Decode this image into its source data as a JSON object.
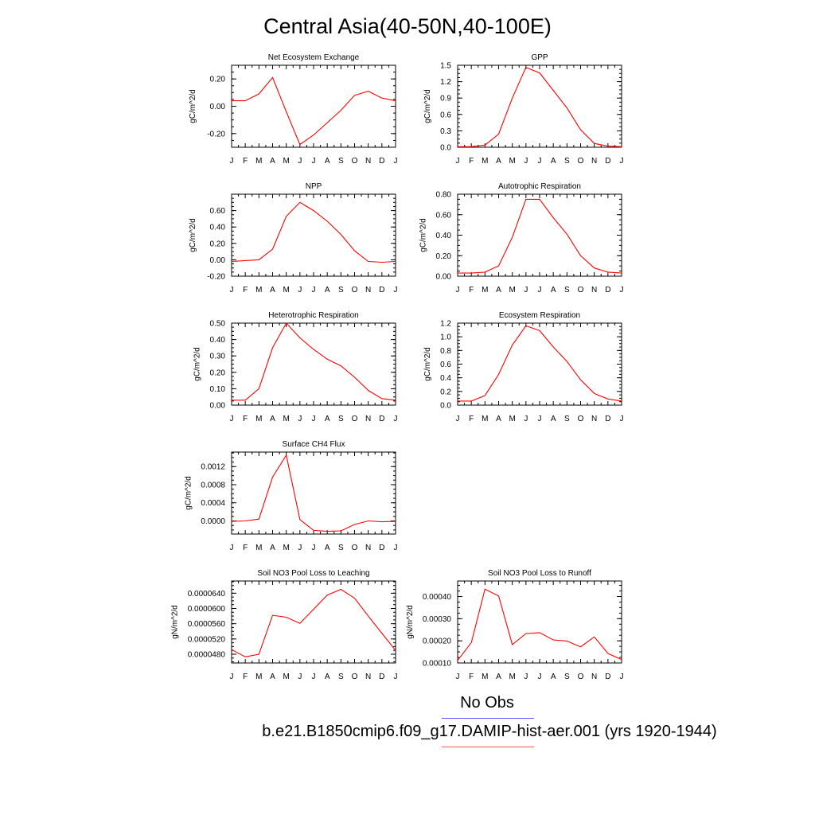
{
  "figure": {
    "title": "Central Asia(40-50N,40-100E)",
    "legend": {
      "obs_label": "No Obs",
      "model_label": "b.e21.B1850cmip6.f09_g17.DAMIP-hist-aer.001 (yrs 1920-1944)",
      "obs_color": "#0000ff",
      "model_color": "#ff0000"
    }
  },
  "chart_data": [
    {
      "type": "line",
      "title": "Net Ecosystem Exchange",
      "ylabel": "gC/m^2/d",
      "x": [
        "J",
        "F",
        "M",
        "A",
        "M",
        "J",
        "J",
        "A",
        "S",
        "O",
        "N",
        "D",
        "J"
      ],
      "ylim": [
        -0.3,
        0.3
      ],
      "yticks": [
        "-0.20",
        "0.00",
        "0.20"
      ],
      "ytick_values": [
        -0.2,
        0.0,
        0.2
      ],
      "series": [
        {
          "values": [
            0.04,
            0.04,
            0.09,
            0.21,
            -0.04,
            -0.28,
            -0.21,
            -0.12,
            -0.03,
            0.08,
            0.11,
            0.06,
            0.04
          ]
        }
      ]
    },
    {
      "type": "line",
      "title": "GPP",
      "ylabel": "gC/m^2/d",
      "x": [
        "J",
        "F",
        "M",
        "A",
        "M",
        "J",
        "J",
        "A",
        "S",
        "O",
        "N",
        "D",
        "J"
      ],
      "ylim": [
        0,
        1.5
      ],
      "yticks": [
        "0.0",
        "0.3",
        "0.6",
        "0.9",
        "1.2",
        "1.5"
      ],
      "ytick_values": [
        0.0,
        0.3,
        0.6,
        0.9,
        1.2,
        1.5
      ],
      "series": [
        {
          "values": [
            0.01,
            0.01,
            0.04,
            0.24,
            0.9,
            1.46,
            1.36,
            1.04,
            0.72,
            0.32,
            0.07,
            0.02,
            0.01
          ]
        }
      ]
    },
    {
      "type": "line",
      "title": "NPP",
      "ylabel": "gC/m^2/d",
      "x": [
        "J",
        "F",
        "M",
        "A",
        "M",
        "J",
        "J",
        "A",
        "S",
        "O",
        "N",
        "D",
        "J"
      ],
      "ylim": [
        -0.2,
        0.8
      ],
      "yticks": [
        "-0.20",
        "0.00",
        "0.20",
        "0.40",
        "0.60"
      ],
      "ytick_values": [
        -0.2,
        0.0,
        0.2,
        0.4,
        0.6
      ],
      "series": [
        {
          "values": [
            -0.02,
            -0.01,
            0.0,
            0.13,
            0.53,
            0.7,
            0.6,
            0.47,
            0.31,
            0.11,
            -0.02,
            -0.03,
            -0.02
          ]
        }
      ]
    },
    {
      "type": "line",
      "title": "Autotrophic Respiration",
      "ylabel": "gC/m^2/d",
      "x": [
        "J",
        "F",
        "M",
        "A",
        "M",
        "J",
        "J",
        "A",
        "S",
        "O",
        "N",
        "D",
        "J"
      ],
      "ylim": [
        0,
        0.8
      ],
      "yticks": [
        "0.00",
        "0.20",
        "0.40",
        "0.60",
        "0.80"
      ],
      "ytick_values": [
        0.0,
        0.2,
        0.4,
        0.6,
        0.8
      ],
      "series": [
        {
          "values": [
            0.03,
            0.03,
            0.04,
            0.1,
            0.38,
            0.75,
            0.75,
            0.57,
            0.41,
            0.2,
            0.08,
            0.04,
            0.03
          ]
        }
      ]
    },
    {
      "type": "line",
      "title": "Heterotrophic Respiration",
      "ylabel": "gC/m^2/d",
      "x": [
        "J",
        "F",
        "M",
        "A",
        "M",
        "J",
        "J",
        "A",
        "S",
        "O",
        "N",
        "D",
        "J"
      ],
      "ylim": [
        0,
        0.5
      ],
      "yticks": [
        "0.00",
        "0.10",
        "0.20",
        "0.30",
        "0.40",
        "0.50"
      ],
      "ytick_values": [
        0.0,
        0.1,
        0.2,
        0.3,
        0.4,
        0.5
      ],
      "series": [
        {
          "values": [
            0.03,
            0.03,
            0.1,
            0.35,
            0.5,
            0.41,
            0.34,
            0.28,
            0.24,
            0.17,
            0.09,
            0.04,
            0.03
          ]
        }
      ]
    },
    {
      "type": "line",
      "title": "Ecosystem Respiration",
      "ylabel": "gC/m^2/d",
      "x": [
        "J",
        "F",
        "M",
        "A",
        "M",
        "J",
        "J",
        "A",
        "S",
        "O",
        "N",
        "D",
        "J"
      ],
      "ylim": [
        0,
        1.2
      ],
      "yticks": [
        "0.0",
        "0.2",
        "0.4",
        "0.6",
        "0.8",
        "1.0",
        "1.2"
      ],
      "ytick_values": [
        0.0,
        0.2,
        0.4,
        0.6,
        0.8,
        1.0,
        1.2
      ],
      "series": [
        {
          "values": [
            0.06,
            0.06,
            0.14,
            0.45,
            0.88,
            1.16,
            1.09,
            0.85,
            0.64,
            0.37,
            0.17,
            0.09,
            0.06
          ]
        }
      ]
    },
    {
      "type": "line",
      "title": "Surface CH4 Flux",
      "ylabel": "gC/m^2/d",
      "x": [
        "J",
        "F",
        "M",
        "A",
        "M",
        "J",
        "J",
        "A",
        "S",
        "O",
        "N",
        "D",
        "J"
      ],
      "ylim": [
        -0.00029,
        0.00152
      ],
      "yticks": [
        "0.0000",
        "0.0004",
        "0.0008",
        "0.0012"
      ],
      "ytick_values": [
        0.0,
        0.0004,
        0.0008,
        0.0012
      ],
      "series": [
        {
          "values": [
            -1e-05,
            0.0,
            4e-05,
            0.00097,
            0.00145,
            3e-05,
            -0.00021,
            -0.00023,
            -0.00022,
            -8e-05,
            0.0,
            -2e-05,
            -1e-05
          ]
        }
      ]
    },
    {
      "type": "line",
      "title": "Soil NO3 Pool Loss to Leaching",
      "ylabel": "gN/m^2/d",
      "x": [
        "J",
        "F",
        "M",
        "A",
        "M",
        "J",
        "J",
        "A",
        "S",
        "O",
        "N",
        "D",
        "J"
      ],
      "ylim": [
        4.57e-05,
        6.72e-05
      ],
      "yticks": [
        "0.0000480",
        "0.0000520",
        "0.0000560",
        "0.0000600",
        "0.0000640"
      ],
      "ytick_values": [
        4.8e-05,
        5.2e-05,
        5.6e-05,
        6e-05,
        6.4e-05
      ],
      "series": [
        {
          "values": [
            4.92e-05,
            4.73e-05,
            4.8e-05,
            5.82e-05,
            5.77e-05,
            5.61e-05,
            5.98e-05,
            6.35e-05,
            6.5e-05,
            6.27e-05,
            5.8e-05,
            5.35e-05,
            4.9e-05
          ]
        }
      ]
    },
    {
      "type": "line",
      "title": "Soil NO3 Pool Loss to Runoff",
      "ylabel": "gN/m^2/d",
      "x": [
        "J",
        "F",
        "M",
        "A",
        "M",
        "J",
        "J",
        "A",
        "S",
        "O",
        "N",
        "D",
        "J"
      ],
      "ylim": [
        0.0001,
        0.00047
      ],
      "yticks": [
        "0.00010",
        "0.00020",
        "0.00030",
        "0.00040"
      ],
      "ytick_values": [
        0.0001,
        0.0002,
        0.0003,
        0.0004
      ],
      "series": [
        {
          "values": [
            0.000112,
            0.000192,
            0.000433,
            0.000403,
            0.000183,
            0.000233,
            0.000237,
            0.000204,
            0.000199,
            0.000173,
            0.000218,
            0.000143,
            0.000115
          ]
        }
      ]
    }
  ]
}
